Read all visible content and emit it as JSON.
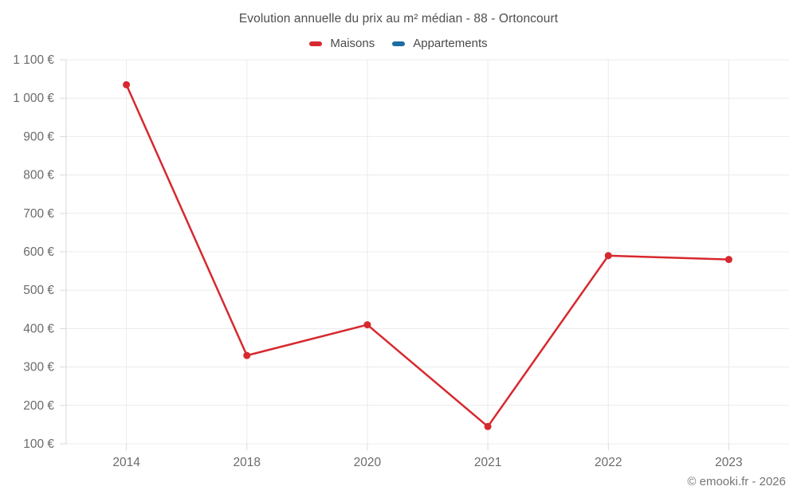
{
  "chart": {
    "title": "Evolution annuelle du prix au m² médian - 88 - Ortoncourt",
    "footer": "© emooki.fr - 2026"
  },
  "chart_data": {
    "type": "line",
    "title": "Evolution annuelle du prix au m² médian - 88 - Ortoncourt",
    "xlabel": "",
    "ylabel": "",
    "categories": [
      "2014",
      "2018",
      "2020",
      "2021",
      "2022",
      "2023"
    ],
    "series": [
      {
        "name": "Maisons",
        "color": "#d7282f",
        "values": [
          1035,
          330,
          410,
          145,
          590,
          580
        ]
      },
      {
        "name": "Appartements",
        "color": "#1c6ea4",
        "values": [
          null,
          null,
          null,
          null,
          null,
          null
        ]
      }
    ],
    "y_axis": {
      "min": 100,
      "max": 1100,
      "tick_step": 100,
      "tick_values": [
        100,
        200,
        300,
        400,
        500,
        600,
        700,
        800,
        900,
        1000,
        1100
      ],
      "tick_labels": [
        "100 €",
        "200 €",
        "300 €",
        "400 €",
        "500 €",
        "600 €",
        "700 €",
        "800 €",
        "900 €",
        "1 000 €",
        "1 100 €"
      ]
    },
    "grid": true,
    "legend_position": "top",
    "annotations": [
      "© emooki.fr - 2026"
    ]
  }
}
